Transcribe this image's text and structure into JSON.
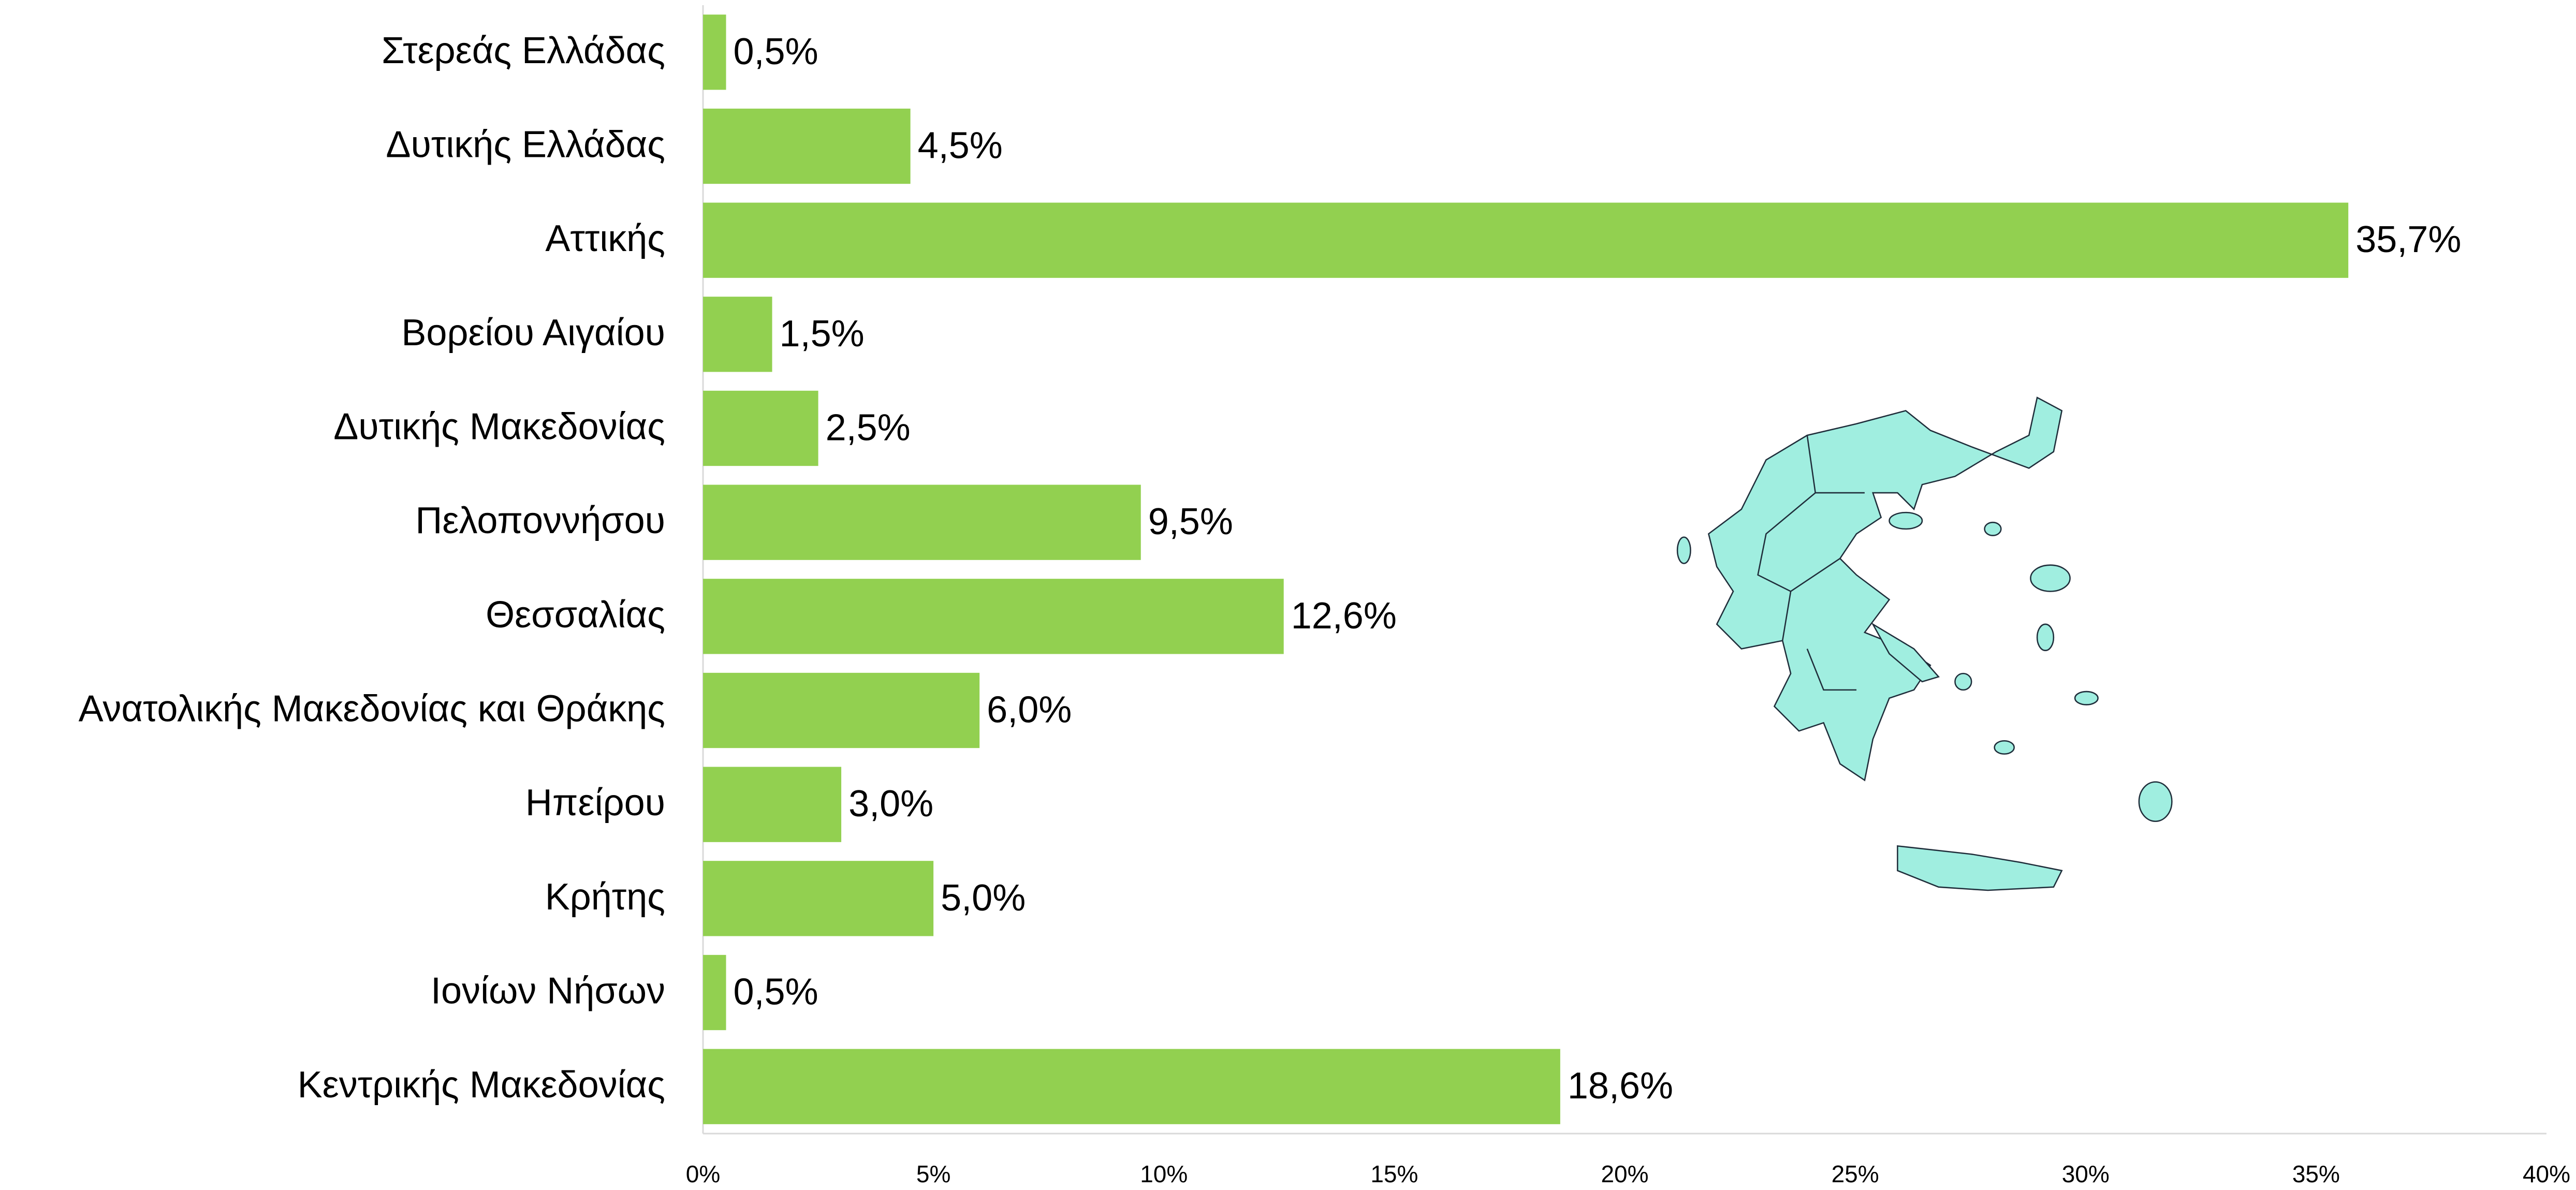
{
  "chart_data": {
    "type": "barh",
    "categories": [
      "Στερεάς Ελλάδας",
      "Δυτικής Ελλάδας",
      "Αττικής",
      "Βορείου Αιγαίου",
      "Δυτικής Μακεδονίας",
      "Πελοποννήσου",
      "Θεσσαλίας",
      "Ανατολικής Μακεδονίας και Θράκης",
      "Ηπείρου",
      "Κρήτης",
      "Ιονίων Νήσων",
      "Κεντρικής Μακεδονίας"
    ],
    "values": [
      0.5,
      4.5,
      35.7,
      1.5,
      2.5,
      9.5,
      12.6,
      6.0,
      3.0,
      5.0,
      0.5,
      18.6
    ],
    "value_labels": [
      "0,5%",
      "4,5%",
      "35,7%",
      "1,5%",
      "2,5%",
      "9,5%",
      "12,6%",
      "6,0%",
      "3,0%",
      "5,0%",
      "0,5%",
      "18,6%"
    ],
    "color": "#92d050",
    "xlim": [
      0,
      40
    ],
    "xticks": [
      {
        "value": 0,
        "label": "0%"
      },
      {
        "value": 5,
        "label": "5%"
      },
      {
        "value": 10,
        "label": "10%"
      },
      {
        "value": 15,
        "label": "15%"
      },
      {
        "value": 20,
        "label": "20%"
      },
      {
        "value": 25,
        "label": "25%"
      },
      {
        "value": 30,
        "label": "30%"
      },
      {
        "value": 35,
        "label": "35%"
      },
      {
        "value": 40,
        "label": "40%"
      }
    ],
    "grid": false
  }
}
